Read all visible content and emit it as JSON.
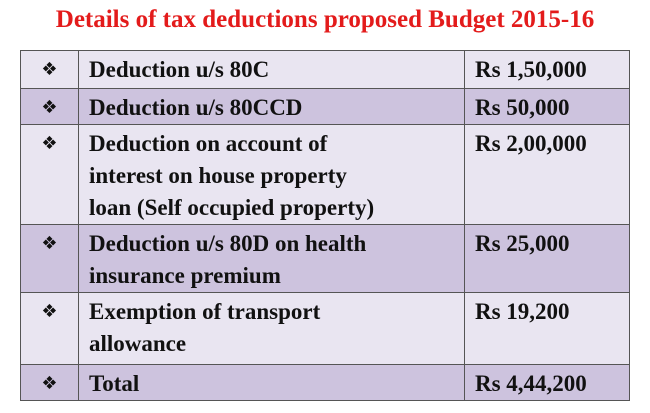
{
  "header": {
    "title": "Details of tax deductions proposed Budget 2015-16"
  },
  "table": {
    "rows": [
      {
        "bullet": "❖",
        "description": [
          "Deduction u/s 80C"
        ],
        "amount": "Rs 1,50,000"
      },
      {
        "bullet": "❖",
        "description": [
          "Deduction u/s 80CCD"
        ],
        "amount": "Rs 50,000"
      },
      {
        "bullet": "❖",
        "description": [
          "Deduction on account of",
          "interest on house property",
          "loan (Self occupied property)"
        ],
        "amount": "Rs 2,00,000"
      },
      {
        "bullet": "❖",
        "description": [
          "Deduction u/s 80D on health",
          "insurance premium"
        ],
        "amount": "Rs 25,000"
      },
      {
        "bullet": "❖",
        "description": [
          "Exemption of transport",
          "allowance"
        ],
        "amount": "Rs 19,200"
      },
      {
        "bullet": "❖",
        "description": [
          "Total"
        ],
        "amount": "Rs 4,44,200"
      }
    ]
  }
}
